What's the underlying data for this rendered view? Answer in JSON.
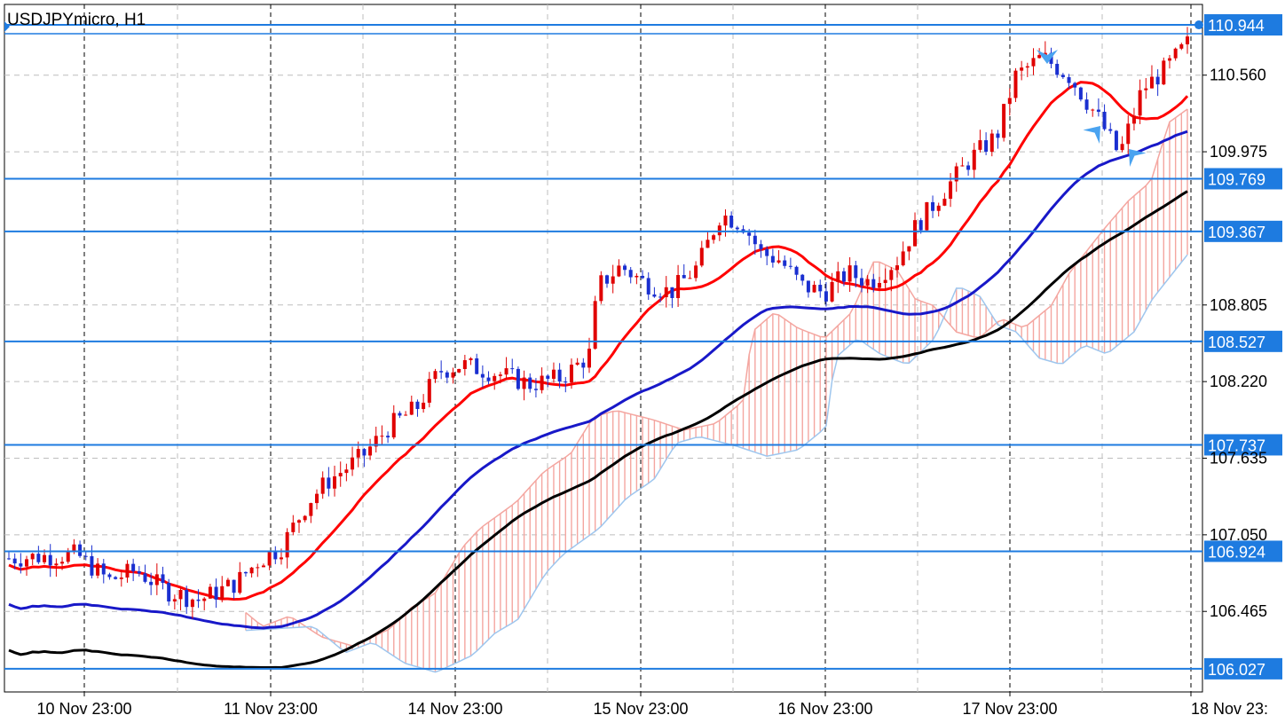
{
  "chart_data": {
    "type": "candlestick",
    "title": "USDJPYmicro, H1",
    "x_tick_labels": [
      "10 Nov 23:00",
      "11 Nov 23:00",
      "14 Nov 23:00",
      "15 Nov 23:00",
      "16 Nov 23:00",
      "17 Nov 23:00",
      "18 Nov 23:"
    ],
    "y_tick_labels": [
      "110.560",
      "109.975",
      "108.805",
      "108.220",
      "107.635",
      "107.050",
      "106.465"
    ],
    "y_ticks": [
      110.56,
      109.975,
      108.805,
      108.22,
      107.635,
      107.05,
      106.465
    ],
    "ylim": [
      105.85,
      111.1
    ],
    "horizontal_levels": [
      {
        "label": "110.944",
        "value": 110.944
      },
      {
        "label": "109.769",
        "value": 109.769
      },
      {
        "label": "109.367",
        "value": 109.367
      },
      {
        "label": "108.527",
        "value": 108.527
      },
      {
        "label": "107.737",
        "value": 107.737
      },
      {
        "label": "106.924",
        "value": 106.924
      },
      {
        "label": "106.027",
        "value": 106.027
      }
    ],
    "current_price": {
      "label": "110.944",
      "value": 110.944
    },
    "grid": true,
    "colors": {
      "bull": "#e00000",
      "bear": "#1a2fd0",
      "ma_fast": "#ff0000",
      "ma_mid": "#1818c8",
      "ma_slow": "#000000",
      "cloud_fill": "#f4a6a0",
      "cloud_edge": "#9ec6ee",
      "level_line": "#1e7be0",
      "arrow": "#4aa3f0"
    }
  }
}
